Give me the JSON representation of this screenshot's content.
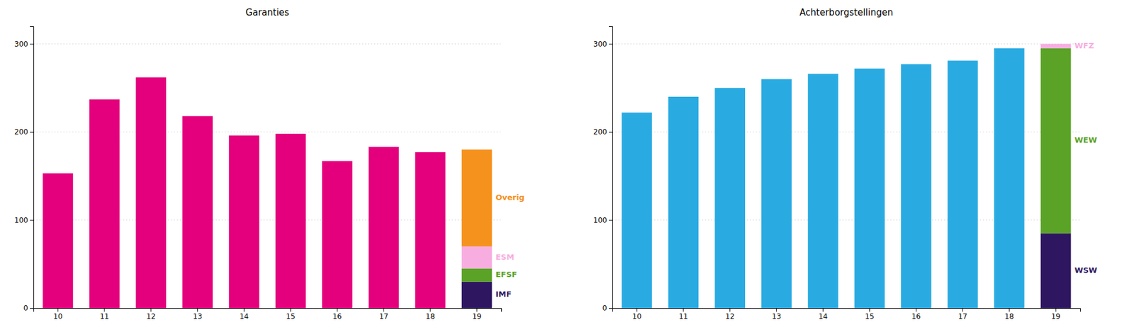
{
  "chart_data": [
    {
      "type": "bar",
      "title": "Garanties",
      "stacked": true,
      "grid": true,
      "categories": [
        "10",
        "11",
        "12",
        "13",
        "14",
        "15",
        "16",
        "17",
        "18",
        "19"
      ],
      "series": [
        {
          "color": "#e4007c",
          "values": [
            153,
            237,
            262,
            218,
            196,
            198,
            167,
            183,
            177,
            0
          ]
        },
        {
          "name": "IMF",
          "color": "#2e1760",
          "values": [
            0,
            0,
            0,
            0,
            0,
            0,
            0,
            0,
            0,
            30
          ]
        },
        {
          "name": "EFSF",
          "color": "#5ba327",
          "values": [
            0,
            0,
            0,
            0,
            0,
            0,
            0,
            0,
            0,
            15
          ]
        },
        {
          "name": "ESM",
          "color": "#f8ade0",
          "values": [
            0,
            0,
            0,
            0,
            0,
            0,
            0,
            0,
            0,
            25
          ]
        },
        {
          "name": "Overig",
          "color": "#f5921e",
          "values": [
            0,
            0,
            0,
            0,
            0,
            0,
            0,
            0,
            0,
            110
          ]
        }
      ],
      "ylim": [
        0,
        320
      ],
      "yticks": [
        0,
        100,
        200,
        300
      ]
    },
    {
      "type": "bar",
      "title": "Achterborgstellingen",
      "stacked": true,
      "grid": true,
      "categories": [
        "10",
        "11",
        "12",
        "13",
        "14",
        "15",
        "16",
        "17",
        "18",
        "19"
      ],
      "series": [
        {
          "color": "#29abe2",
          "values": [
            222,
            240,
            250,
            260,
            266,
            272,
            277,
            281,
            295,
            0
          ]
        },
        {
          "name": "WSW",
          "color": "#2e1760",
          "values": [
            0,
            0,
            0,
            0,
            0,
            0,
            0,
            0,
            0,
            85
          ]
        },
        {
          "name": "WEW",
          "color": "#5ba327",
          "values": [
            0,
            0,
            0,
            0,
            0,
            0,
            0,
            0,
            0,
            210
          ]
        },
        {
          "name": "WFZ",
          "color": "#f8ade0",
          "values": [
            0,
            0,
            0,
            0,
            0,
            0,
            0,
            0,
            0,
            5
          ]
        }
      ],
      "ylim": [
        0,
        320
      ],
      "yticks": [
        0,
        100,
        200,
        300
      ]
    }
  ]
}
